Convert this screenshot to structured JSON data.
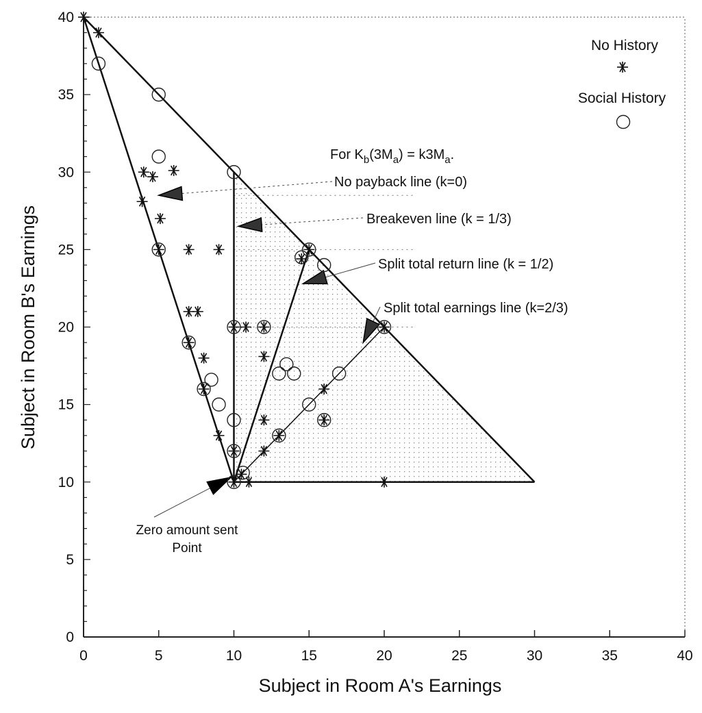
{
  "chart_data": {
    "type": "scatter",
    "xlabel": "Subject in Room A's Earnings",
    "ylabel": "Subject in Room B's Earnings",
    "xlim": [
      0,
      40
    ],
    "ylim": [
      0,
      40
    ],
    "xticks": [
      0,
      5,
      10,
      15,
      20,
      25,
      30,
      35,
      40
    ],
    "yticks": [
      0,
      5,
      10,
      15,
      20,
      25,
      30,
      35,
      40
    ],
    "legend": {
      "placement": "top-right",
      "entries": [
        {
          "label": "No History",
          "marker": "asterisk"
        },
        {
          "label": "Social History",
          "marker": "circle"
        }
      ]
    },
    "formula": {
      "prefix": "For K",
      "sub1": "b",
      "mid": "(3M",
      "sub2": "a",
      "mid2": ") = k3M",
      "sub3": "a",
      "suffix": "."
    },
    "lines": [
      {
        "name": "frontier",
        "points": [
          [
            0,
            40
          ],
          [
            30,
            10
          ]
        ]
      },
      {
        "name": "No payback line (k=0)",
        "points": [
          [
            0,
            40
          ],
          [
            10,
            10
          ]
        ]
      },
      {
        "name": "base",
        "points": [
          [
            10,
            10
          ],
          [
            30,
            10
          ]
        ]
      },
      {
        "name": "Breakeven line (k = 1/3)",
        "points": [
          [
            10,
            10
          ],
          [
            10,
            30
          ]
        ]
      },
      {
        "name": "Split total return line (k = 1/2)",
        "points": [
          [
            10,
            10
          ],
          [
            15,
            25
          ]
        ]
      },
      {
        "name": "Split total earnings line (k=2/3)",
        "points": [
          [
            10,
            10
          ],
          [
            20,
            20
          ]
        ]
      }
    ],
    "shaded_region": [
      [
        10,
        10
      ],
      [
        10,
        30
      ],
      [
        30,
        10
      ]
    ],
    "annotations": [
      {
        "text": "No payback line (k=0)",
        "target": [
          5,
          28.5
        ]
      },
      {
        "text": "Breakeven line (k = 1/3)",
        "target": [
          10.3,
          26.5
        ]
      },
      {
        "text": "Split total return line (k = 1/2)",
        "target": [
          14.6,
          22.8
        ]
      },
      {
        "text": "Split total earnings line (k=2/3)",
        "target": [
          18.6,
          19
        ]
      },
      {
        "text": "Zero amount sent",
        "text2": "Point",
        "target": [
          9.8,
          10.3
        ]
      }
    ],
    "series": [
      {
        "name": "No History",
        "marker": "asterisk",
        "points": [
          [
            0,
            40
          ],
          [
            1,
            39
          ],
          [
            4,
            30
          ],
          [
            4.6,
            29.7
          ],
          [
            6,
            30.1
          ],
          [
            3.9,
            28.1
          ],
          [
            5.1,
            27
          ],
          [
            5,
            25
          ],
          [
            7,
            25
          ],
          [
            9,
            25
          ],
          [
            7,
            21
          ],
          [
            7.6,
            21
          ],
          [
            7,
            19
          ],
          [
            8,
            18
          ],
          [
            8,
            16
          ],
          [
            9,
            13
          ],
          [
            10,
            12
          ],
          [
            10,
            20
          ],
          [
            10.8,
            20
          ],
          [
            12,
            20
          ],
          [
            12,
            18.1
          ],
          [
            12,
            14
          ],
          [
            12,
            12
          ],
          [
            13,
            13
          ],
          [
            14.5,
            24.4
          ],
          [
            15,
            25
          ],
          [
            16,
            16
          ],
          [
            16,
            14
          ],
          [
            20,
            20
          ],
          [
            20,
            10
          ],
          [
            11,
            10
          ],
          [
            10.5,
            10.5
          ],
          [
            10,
            10
          ]
        ]
      },
      {
        "name": "Social History",
        "marker": "circle",
        "points": [
          [
            1,
            37
          ],
          [
            5,
            35
          ],
          [
            5,
            31
          ],
          [
            10,
            30
          ],
          [
            5,
            25
          ],
          [
            7,
            19
          ],
          [
            8,
            16
          ],
          [
            8.5,
            16.6
          ],
          [
            9,
            15
          ],
          [
            10,
            20
          ],
          [
            12,
            20
          ],
          [
            10,
            14
          ],
          [
            10,
            12
          ],
          [
            13,
            17
          ],
          [
            13.5,
            17.6
          ],
          [
            14,
            17
          ],
          [
            14.5,
            24.5
          ],
          [
            15,
            25
          ],
          [
            16,
            24
          ],
          [
            17,
            17
          ],
          [
            15,
            15
          ],
          [
            16,
            14
          ],
          [
            13,
            13
          ],
          [
            20,
            20
          ],
          [
            10.6,
            10.6
          ],
          [
            10,
            10
          ]
        ]
      }
    ]
  }
}
